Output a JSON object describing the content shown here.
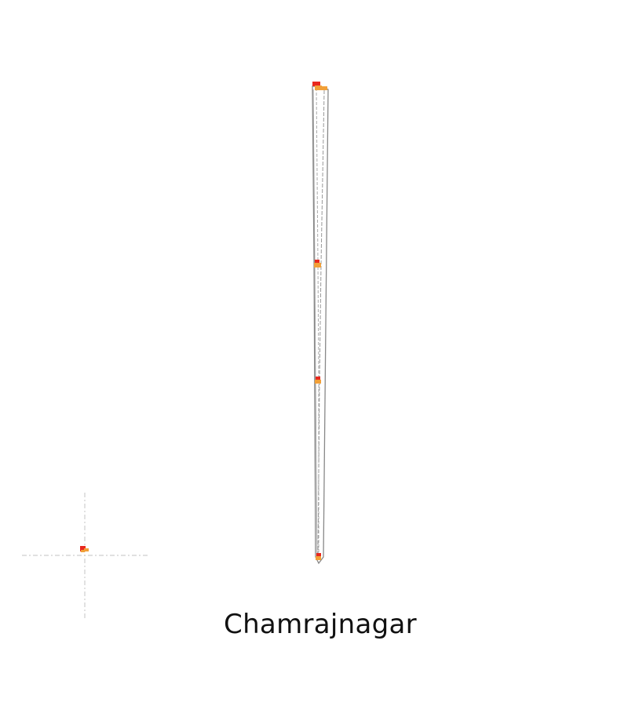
{
  "map": {
    "place_name": "Chamrajnagar",
    "colors": {
      "background": "#ffffff",
      "boundary": "#888888",
      "boundary_dashed": "#aaaaaa",
      "marker_primary": "#e8281e",
      "marker_secondary": "#f2a038",
      "crosshair": "#cfcfcf"
    },
    "icons": {
      "locator": "crosshair-icon",
      "settlement": "square-marker-icon"
    }
  }
}
